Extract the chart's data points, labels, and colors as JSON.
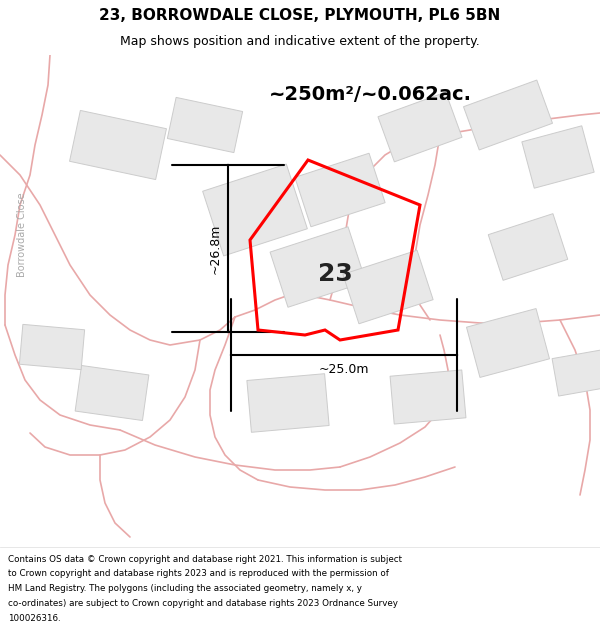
{
  "title": "23, BORROWDALE CLOSE, PLYMOUTH, PL6 5BN",
  "subtitle": "Map shows position and indicative extent of the property.",
  "area_text": "~250m²/~0.062ac.",
  "label_23": "23",
  "dim_height": "~26.8m",
  "dim_width": "~25.0m",
  "street_label": "Borrowdale Close",
  "footer": "Contains OS data © Crown copyright and database right 2021. This information is subject to Crown copyright and database rights 2023 and is reproduced with the permission of HM Land Registry. The polygons (including the associated geometry, namely x, y co-ordinates) are subject to Crown copyright and database rights 2023 Ordnance Survey 100026316.",
  "map_bg": "#ffffff",
  "building_color": "#e8e8e8",
  "building_edge": "#cccccc",
  "road_color": "#e8a8a8",
  "property_color": "#ff0000",
  "title_color": "#000000",
  "footer_color": "#000000",
  "dim_color": "#000000",
  "area_color": "#000000",
  "street_label_color": "#aaaaaa"
}
